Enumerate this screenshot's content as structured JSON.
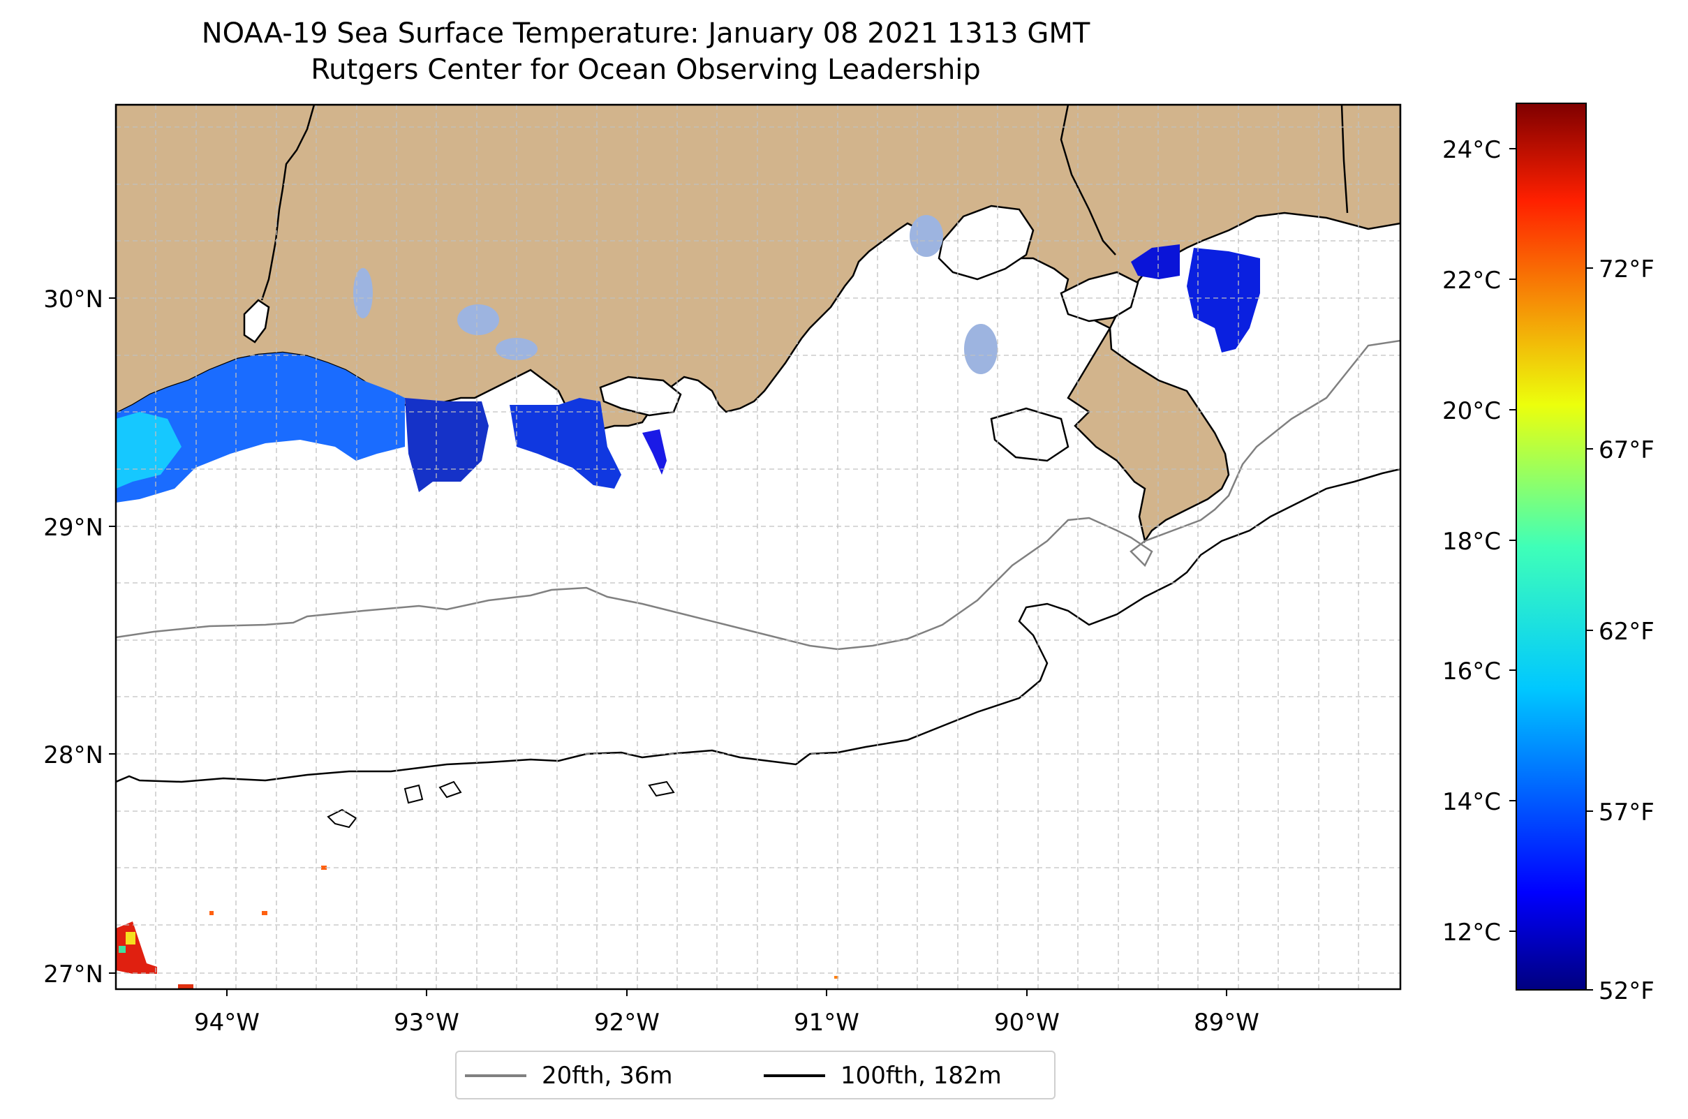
{
  "title": "NOAA-19 Sea Surface Temperature: January 08 2021 1313 GMT",
  "subtitle": "Rutgers Center for Ocean Observing Leadership",
  "map": {
    "lon_ticks": [
      "94°W",
      "93°W",
      "92°W",
      "91°W",
      "90°W",
      "89°W"
    ],
    "lat_ticks": [
      "30°N",
      "29°N",
      "28°N",
      "27°N"
    ],
    "lon_range": [
      -94.55,
      -88.2
    ],
    "lat_range": [
      26.93,
      30.85
    ],
    "land_color": "#d2b48c",
    "ocean_color": "#ffffff",
    "lake_color": "#9db4e0",
    "grid": "dashed"
  },
  "colorbar": {
    "celsius_ticks": [
      "24°C",
      "22°C",
      "20°C",
      "18°C",
      "16°C",
      "14°C",
      "12°C"
    ],
    "fahrenheit_ticks": [
      "72°F",
      "67°F",
      "62°F",
      "57°F",
      "52°F"
    ],
    "colormap": "jet",
    "range_c": [
      11.1,
      24.7
    ]
  },
  "legend": {
    "items": [
      {
        "label": "20fth, 36m",
        "color": "#808080"
      },
      {
        "label": "100fth, 182m",
        "color": "#000000"
      }
    ]
  }
}
